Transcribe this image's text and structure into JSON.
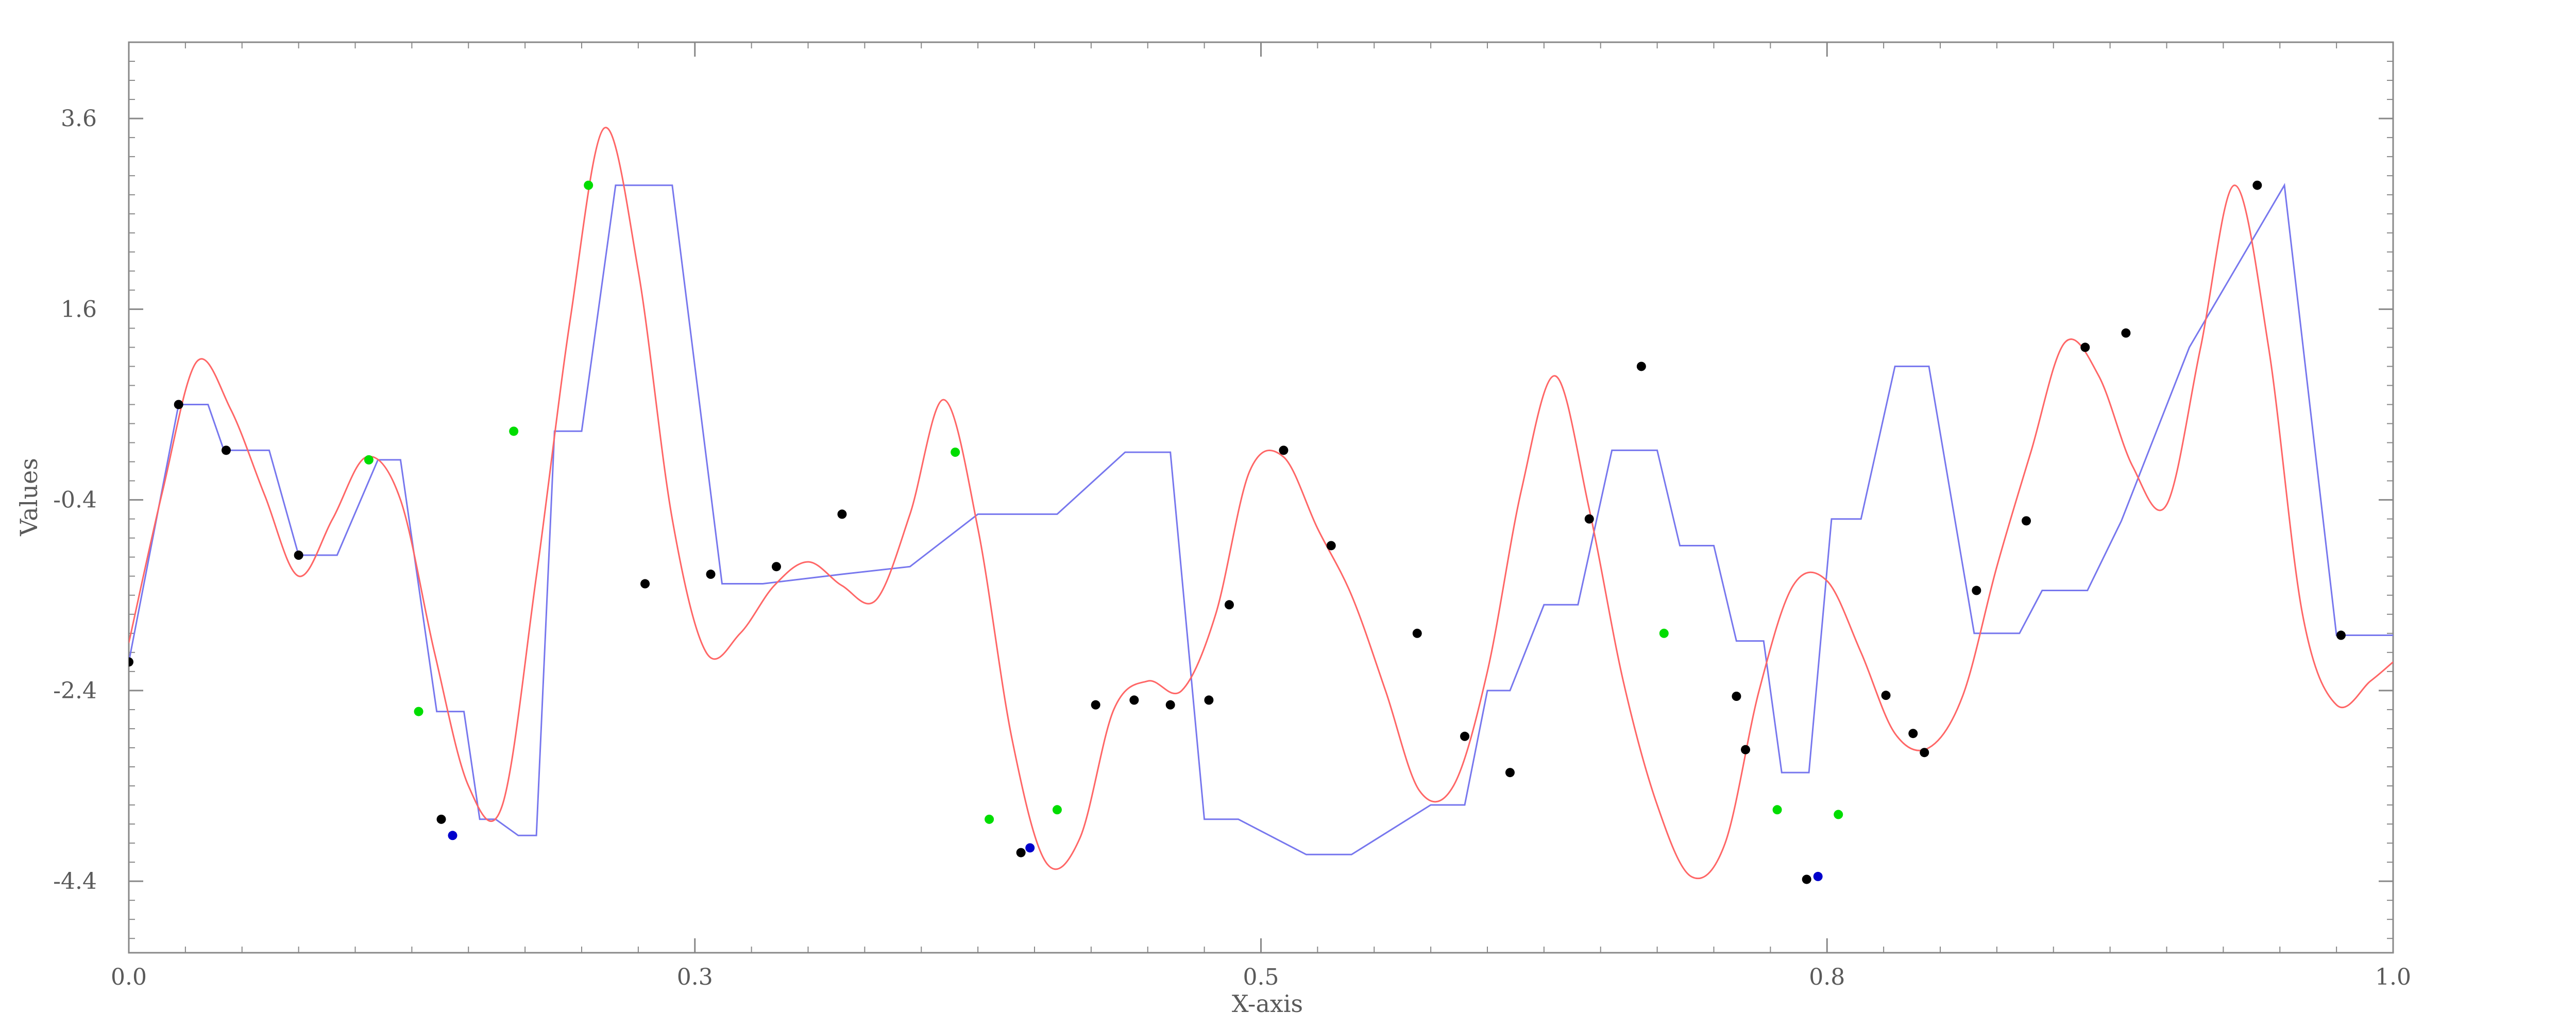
{
  "chart_data": {
    "type": "line",
    "title": "",
    "xlabel": "X-axis",
    "ylabel": "Values",
    "xlim": [
      0.0,
      1.0
    ],
    "ylim": [
      -5.15,
      4.4
    ],
    "x_ticks": [
      {
        "value": 0.0,
        "label": "0.0"
      },
      {
        "value": 0.25,
        "label": "0.3"
      },
      {
        "value": 0.5,
        "label": "0.5"
      },
      {
        "value": 0.75,
        "label": "0.8"
      },
      {
        "value": 1.0,
        "label": "1.0"
      }
    ],
    "y_ticks": [
      {
        "value": 3.6,
        "label": "3.6"
      },
      {
        "value": 1.6,
        "label": "1.6"
      },
      {
        "value": -0.4,
        "label": "-0.4"
      },
      {
        "value": -2.4,
        "label": "-2.4"
      },
      {
        "value": -4.4,
        "label": "-4.4"
      }
    ],
    "grid": false,
    "colors": {
      "smooth_curve": "#ff6666",
      "step_line": "#7777ee",
      "point_default": "#000000",
      "point_green": "#00dd00",
      "point_blue": "#0000cc",
      "axis": "#888888",
      "text": "#5a5a5a"
    },
    "series": [
      {
        "style": "step",
        "color": "#7777ee",
        "x": [
          0.0,
          0.022,
          0.035,
          0.042,
          0.062,
          0.075,
          0.092,
          0.11,
          0.12,
          0.136,
          0.148,
          0.155,
          0.162,
          0.172,
          0.18,
          0.188,
          0.2,
          0.215,
          0.24,
          0.262,
          0.28,
          0.315,
          0.345,
          0.375,
          0.41,
          0.44,
          0.46,
          0.475,
          0.49,
          0.52,
          0.54,
          0.575,
          0.59,
          0.6,
          0.61,
          0.625,
          0.64,
          0.655,
          0.675,
          0.685,
          0.7,
          0.71,
          0.722,
          0.73,
          0.742,
          0.752,
          0.765,
          0.78,
          0.795,
          0.815,
          0.835,
          0.845,
          0.865,
          0.88,
          0.91,
          0.952,
          0.975,
          1.0
        ],
        "y": [
          -2.1,
          0.6,
          0.6,
          0.12,
          0.12,
          -0.98,
          -0.98,
          0.02,
          0.02,
          -2.62,
          -2.62,
          -3.75,
          -3.75,
          -3.92,
          -3.92,
          0.32,
          0.32,
          2.9,
          2.9,
          -1.28,
          -1.28,
          -1.18,
          -1.1,
          -0.55,
          -0.55,
          0.1,
          0.1,
          -3.75,
          -3.75,
          -4.12,
          -4.12,
          -3.6,
          -3.6,
          -2.4,
          -2.4,
          -1.5,
          -1.5,
          0.12,
          0.12,
          -0.88,
          -0.88,
          -1.88,
          -1.88,
          -3.26,
          -3.26,
          -0.6,
          -0.6,
          1.0,
          1.0,
          -1.8,
          -1.8,
          -1.35,
          -1.35,
          -0.62,
          1.2,
          2.9,
          -1.82,
          -1.82
        ]
      },
      {
        "style": "smooth",
        "color": "#ff6666",
        "x": [
          0.0,
          0.015,
          0.03,
          0.045,
          0.06,
          0.075,
          0.09,
          0.105,
          0.12,
          0.135,
          0.15,
          0.165,
          0.18,
          0.195,
          0.21,
          0.225,
          0.24,
          0.255,
          0.27,
          0.285,
          0.3,
          0.315,
          0.33,
          0.345,
          0.36,
          0.375,
          0.39,
          0.405,
          0.42,
          0.435,
          0.45,
          0.465,
          0.48,
          0.495,
          0.51,
          0.525,
          0.54,
          0.555,
          0.57,
          0.585,
          0.6,
          0.615,
          0.63,
          0.645,
          0.66,
          0.675,
          0.69,
          0.705,
          0.72,
          0.735,
          0.75,
          0.765,
          0.78,
          0.795,
          0.81,
          0.825,
          0.84,
          0.855,
          0.87,
          0.885,
          0.9,
          0.915,
          0.93,
          0.945,
          0.96,
          0.975,
          0.99,
          1.0
        ],
        "y": [
          -1.9,
          -0.3,
          1.05,
          0.55,
          -0.35,
          -1.2,
          -0.6,
          0.05,
          -0.4,
          -2.0,
          -3.4,
          -3.6,
          -1.2,
          1.5,
          3.5,
          2.0,
          -0.6,
          -2.0,
          -1.8,
          -1.3,
          -1.05,
          -1.3,
          -1.45,
          -0.55,
          0.65,
          -0.7,
          -2.9,
          -4.2,
          -3.95,
          -2.6,
          -2.3,
          -2.4,
          -1.6,
          -0.1,
          0.05,
          -0.7,
          -1.4,
          -2.4,
          -3.45,
          -3.4,
          -2.2,
          -0.3,
          0.9,
          -0.5,
          -2.3,
          -3.6,
          -4.35,
          -4.0,
          -2.4,
          -1.3,
          -1.25,
          -2.0,
          -2.85,
          -3.0,
          -2.45,
          -1.1,
          0.1,
          1.25,
          0.9,
          -0.05,
          -0.45,
          1.2,
          2.9,
          1.2,
          -1.6,
          -2.55,
          -2.3,
          -2.1
        ]
      },
      {
        "style": "scatter",
        "x": [
          0.0,
          0.022,
          0.043,
          0.075,
          0.106,
          0.128,
          0.138,
          0.143,
          0.17,
          0.203,
          0.228,
          0.257,
          0.286,
          0.315,
          0.365,
          0.38,
          0.394,
          0.398,
          0.41,
          0.427,
          0.444,
          0.46,
          0.477,
          0.486,
          0.51,
          0.531,
          0.569,
          0.59,
          0.61,
          0.645,
          0.668,
          0.678,
          0.71,
          0.714,
          0.728,
          0.741,
          0.746,
          0.755,
          0.776,
          0.788,
          0.793,
          0.816,
          0.838,
          0.864,
          0.882,
          0.94,
          0.977
        ],
        "y": [
          -2.1,
          0.6,
          0.12,
          -0.98,
          0.02,
          -2.62,
          -3.75,
          -3.92,
          0.32,
          2.9,
          -1.28,
          -1.18,
          -1.1,
          -0.55,
          0.1,
          -3.75,
          -4.1,
          -4.05,
          -3.65,
          -2.55,
          -2.5,
          -2.55,
          -2.5,
          -1.5,
          0.12,
          -0.88,
          -1.8,
          -2.88,
          -3.26,
          -0.6,
          1.0,
          -1.8,
          -2.46,
          -3.02,
          -3.65,
          -4.38,
          -4.35,
          -3.7,
          -2.45,
          -2.85,
          -3.05,
          -1.35,
          -0.62,
          1.2,
          1.35,
          2.9,
          -1.82
        ],
        "colors": [
          "#000000",
          "#000000",
          "#000000",
          "#000000",
          "#00dd00",
          "#00dd00",
          "#000000",
          "#0000cc",
          "#00dd00",
          "#00dd00",
          "#000000",
          "#000000",
          "#000000",
          "#000000",
          "#00dd00",
          "#00dd00",
          "#000000",
          "#0000cc",
          "#00dd00",
          "#000000",
          "#000000",
          "#000000",
          "#000000",
          "#000000",
          "#000000",
          "#000000",
          "#000000",
          "#000000",
          "#000000",
          "#000000",
          "#000000",
          "#00dd00",
          "#000000",
          "#000000",
          "#00dd00",
          "#000000",
          "#0000cc",
          "#00dd00",
          "#000000",
          "#000000",
          "#000000",
          "#000000",
          "#000000",
          "#000000",
          "#000000",
          "#000000",
          "#000000"
        ]
      }
    ]
  }
}
